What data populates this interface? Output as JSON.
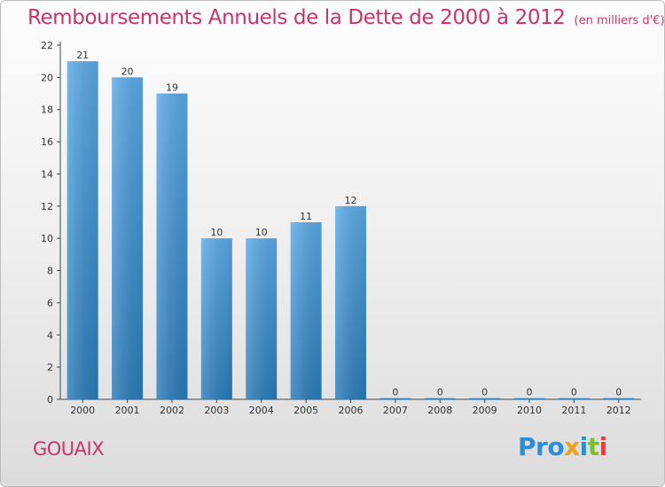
{
  "header": {
    "title": "Remboursements Annuels de la Dette de 2000 à 2012",
    "unit": "(en milliers d'€)"
  },
  "footer": {
    "commune": "GOUAIX",
    "logo_text": "Proxiti",
    "logo_colors": [
      "#2a8fd6",
      "#2a8fd6",
      "#2a8fd6",
      "#e8a21c",
      "#2a8fd6",
      "#7cbf2a",
      "#e04040"
    ]
  },
  "colors": {
    "bar_top": "#5aa9e6",
    "bar_bottom": "#2a7ab8",
    "axis": "#444444",
    "label": "#333333",
    "accent": "#c8346a"
  },
  "chart_data": {
    "type": "bar",
    "categories": [
      "2000",
      "2001",
      "2002",
      "2003",
      "2004",
      "2005",
      "2006",
      "2007",
      "2008",
      "2009",
      "2010",
      "2011",
      "2012"
    ],
    "values": [
      21,
      20,
      19,
      10,
      10,
      11,
      12,
      0,
      0,
      0,
      0,
      0,
      0
    ],
    "data_labels": [
      "21",
      "20",
      "19",
      "10",
      "10",
      "11",
      "12",
      "0",
      "0",
      "0",
      "0",
      "0",
      "0"
    ],
    "y_ticks": [
      0,
      2,
      4,
      6,
      8,
      10,
      12,
      14,
      16,
      18,
      20,
      22
    ],
    "ylim": [
      0,
      22
    ],
    "title": "Remboursements Annuels de la Dette de 2000 à 2012",
    "xlabel": "",
    "ylabel": "",
    "grid": false,
    "legend": "none"
  }
}
